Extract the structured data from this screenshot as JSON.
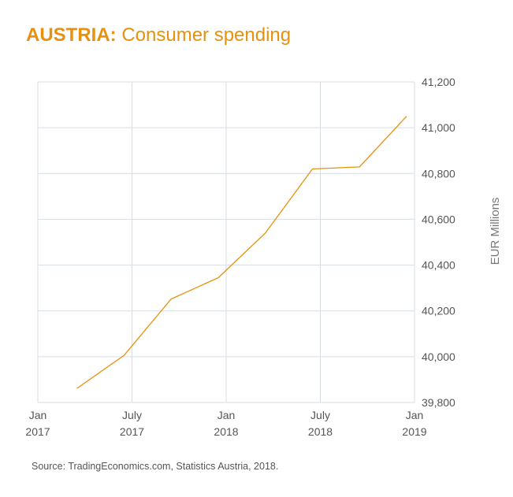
{
  "title": {
    "country": "AUSTRIA:",
    "subject": "Consumer spending"
  },
  "source": "Source: TradingEconomics.com, Statistics Austria, 2018.",
  "colors": {
    "accent": "#e8910e",
    "grid": "#d6dde3",
    "tick_text": "#555555",
    "axis_label": "#777777"
  },
  "chart_data": {
    "type": "line",
    "title": "AUSTRIA: Consumer spending",
    "xlabel": "",
    "ylabel": "EUR Millions",
    "y_axis_position": "right",
    "ylim": [
      39800,
      41200
    ],
    "yticks": [
      39800,
      40000,
      40200,
      40400,
      40600,
      40800,
      41000,
      41200
    ],
    "ytick_labels": [
      "39,800",
      "40,000",
      "40,200",
      "40,400",
      "40,600",
      "40,800",
      "41,000",
      "41,200"
    ],
    "xlim": [
      2017.0,
      2019.0
    ],
    "xticks": [
      {
        "value": 2017.0,
        "line1": "Jan",
        "line2": "2017"
      },
      {
        "value": 2017.5,
        "line1": "July",
        "line2": "2017"
      },
      {
        "value": 2018.0,
        "line1": "Jan",
        "line2": "2018"
      },
      {
        "value": 2018.5,
        "line1": "July",
        "line2": "2018"
      },
      {
        "value": 2019.0,
        "line1": "Jan",
        "line2": "2019"
      }
    ],
    "grid": true,
    "series": [
      {
        "name": "Consumer spending",
        "x": [
          2017.208,
          2017.458,
          2017.708,
          2017.958,
          2018.208,
          2018.458,
          2018.708,
          2018.958
        ],
        "values": [
          39862,
          40006,
          40252,
          40345,
          40540,
          40820,
          40829,
          41050
        ]
      }
    ]
  }
}
